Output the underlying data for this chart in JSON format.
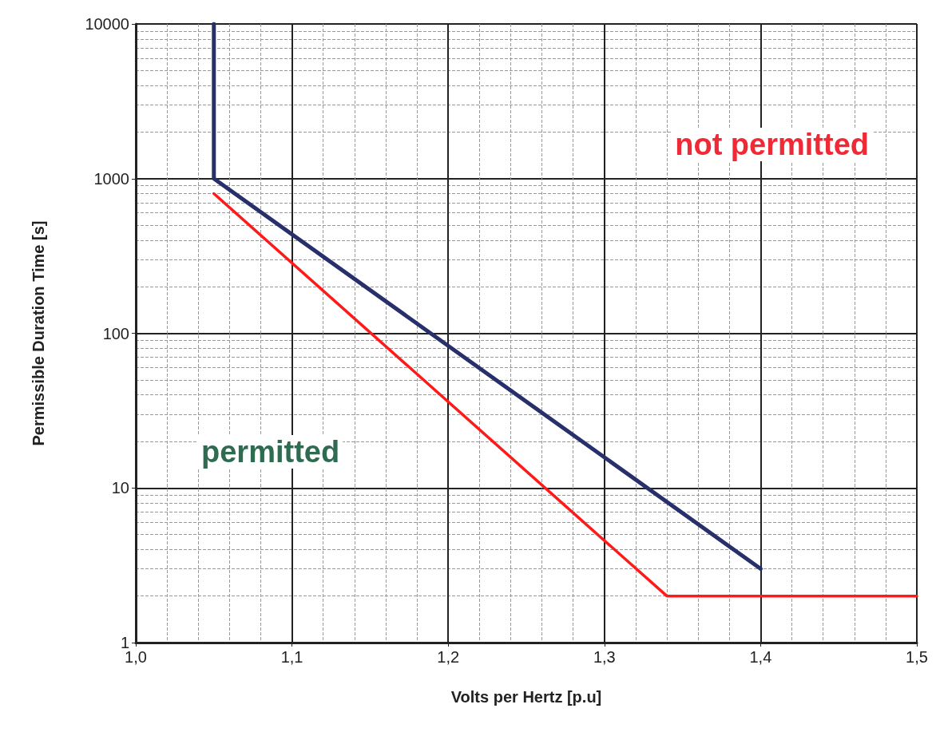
{
  "chart_data": {
    "type": "line",
    "xlabel": "Volts per Hertz [p.u]",
    "ylabel": "Permissible Duration Time [s]",
    "series": [
      {
        "color": "#27306b",
        "x": [
          1.05,
          1.05,
          1.4
        ],
        "values": [
          10000,
          1000,
          3
        ]
      },
      {
        "color": "#ff1a1a",
        "x": [
          1.05,
          1.34,
          1.5
        ],
        "values": [
          800,
          2,
          2
        ]
      }
    ],
    "xlim": [
      1.0,
      1.5
    ],
    "xticks": [
      {
        "value": 1.0,
        "label": "1,0"
      },
      {
        "value": 1.1,
        "label": "1,1"
      },
      {
        "value": 1.2,
        "label": "1,2"
      },
      {
        "value": 1.3,
        "label": "1,3"
      },
      {
        "value": 1.4,
        "label": "1,4"
      },
      {
        "value": 1.5,
        "label": "1,5"
      }
    ],
    "ylim": [
      1,
      10000
    ],
    "yticks": [
      1,
      10,
      100,
      1000,
      10000
    ],
    "log": "y",
    "grid": true,
    "marker": "none",
    "line_style": "solid",
    "annotations": [
      "not permitted",
      "permitted"
    ]
  }
}
